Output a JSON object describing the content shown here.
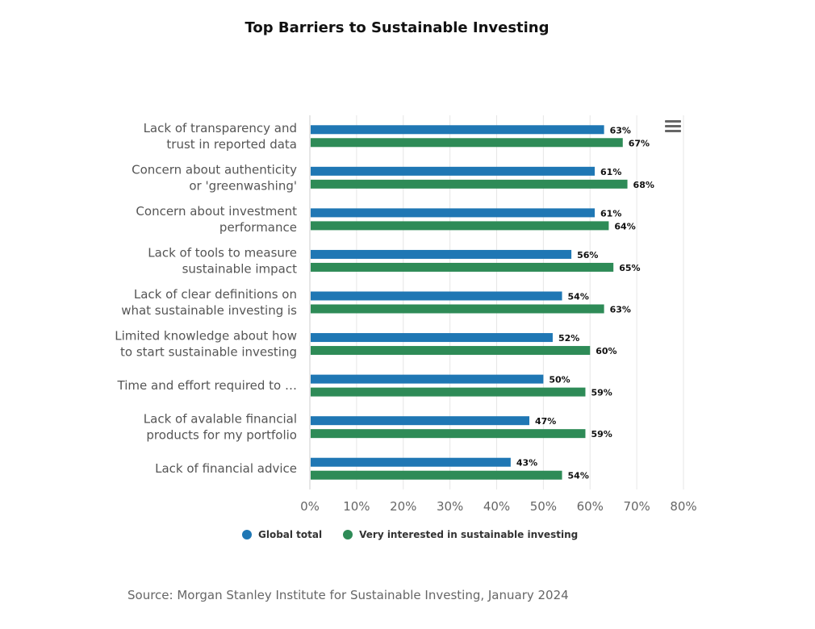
{
  "chart_data": {
    "type": "bar",
    "orientation": "horizontal",
    "title": "Top Barriers to Sustainable Investing",
    "categories": [
      [
        "Lack of transparency and",
        "trust in reported data"
      ],
      [
        "Concern about authenticity",
        "or 'greenwashing'"
      ],
      [
        "Concern about investment",
        "performance"
      ],
      [
        "Lack of tools to measure",
        "sustainable impact"
      ],
      [
        "Lack of clear definitions on",
        "what sustainable investing is"
      ],
      [
        "Limited knowledge about how",
        "to start sustainable investing"
      ],
      [
        "Time and effort required to …"
      ],
      [
        "Lack of avalable financial",
        "products for my portfolio"
      ],
      [
        "Lack of financial advice"
      ]
    ],
    "series": [
      {
        "name": "Global total",
        "color": "#1f77b4",
        "values": [
          63,
          61,
          61,
          56,
          54,
          52,
          50,
          47,
          43
        ]
      },
      {
        "name": "Very interested in sustainable investing",
        "color": "#2e8b57",
        "values": [
          67,
          68,
          64,
          65,
          63,
          60,
          59,
          59,
          54
        ]
      }
    ],
    "xlim": [
      0,
      80
    ],
    "xticks": [
      "0%",
      "10%",
      "20%",
      "30%",
      "40%",
      "50%",
      "60%",
      "70%",
      "80%"
    ],
    "value_suffix": "%",
    "grid": true,
    "legend_position": "bottom"
  },
  "source": "Source: Morgan Stanley Institute for Sustainable Investing, January 2024",
  "menu_icon": "hamburger-menu-icon"
}
